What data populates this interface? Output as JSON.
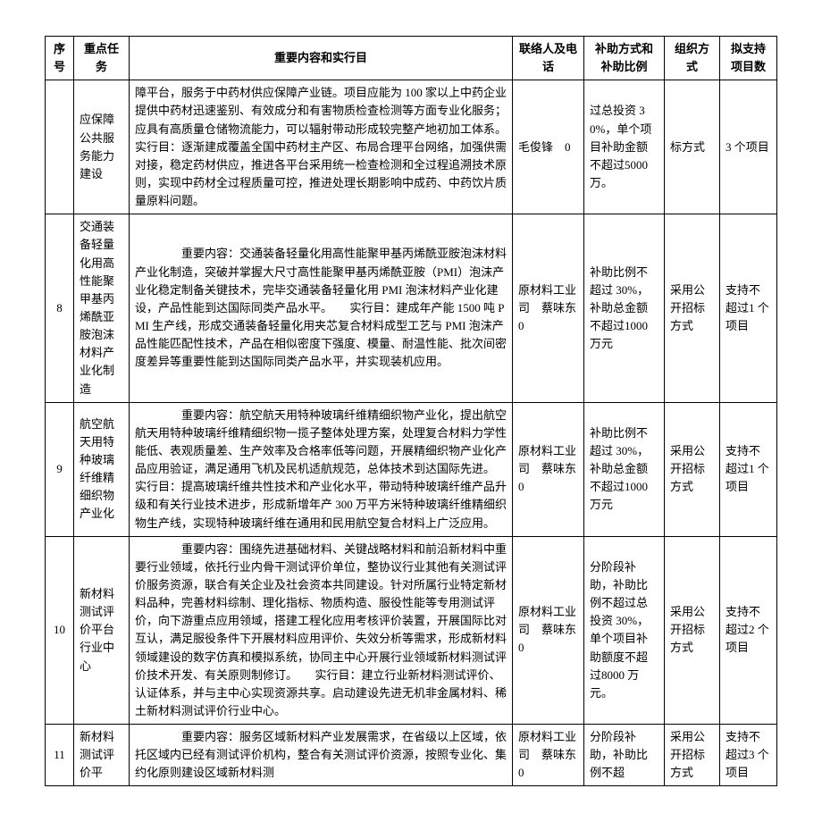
{
  "headers": {
    "seq": "序号",
    "task": "重点任务",
    "content": "重要内容和实行目",
    "contact": "联络人及电话",
    "subsidy": "补助方式和补助比例",
    "org": "组织方式",
    "projects": "拟支持项目数"
  },
  "rows": {
    "r0": {
      "task": "应保障公共服务能力建设",
      "content": "障平台，服务于中药材供应保障产业链。项目应能为 100 家以上中药企业提供中药材迅速鉴别、有效成分和有害物质检查检测等方面专业化服务；应具有高质量仓储物流能力，可以辐射带动形成较完整产地初加工体系。　　实行目：逐渐建成覆盖全国中药材主产区、布局合理平台网络，加强供需对接，稳定药材供应，推进各平台采用统一检查检测和全过程追溯技术原则，实现中药材全过程质量可控，推进处理长期影响中成药、中药饮片质量原料问题。",
      "contact": "毛俊锋　0",
      "subsidy": "过总投资 30%，单个项目补助金额不超过5000 万。",
      "org": "标方式",
      "projects": "3 个项目"
    },
    "r8": {
      "seq": "8",
      "task": "交通装备轻量化用高性能聚甲基丙烯酰亚胺泡沫材料产业化制造",
      "content": "　　重要内容：交通装备轻量化用高性能聚甲基丙烯酰亚胺泡沫材料产业化制造，突破并掌握大尺寸高性能聚甲基丙烯酰亚胺（PMI）泡沫产业化稳定制备关键技术，完毕交通装备轻量化用 PMI 泡沫材料产业化建设，产品性能到达国际同类产品水平。　　实行目：建成年产能 1500 吨 PMI 生产线，形成交通装备轻量化用夹芯复合材料成型工艺与 PMI 泡沫产品性能匹配性技术，产品在相似密度下强度、模量、耐温性能、批次间密度差异等重要性能到达国际同类产品水平，并实现装机应用。",
      "contact": "原材料工业司　蔡味东　0",
      "subsidy": "补助比例不超过 30%，补助总金额不超过1000 万元",
      "org": "采用公开招标方式",
      "projects": "支持不超过1 个项目"
    },
    "r9": {
      "seq": "9",
      "task": "航空航天用特种玻璃纤维精细织物产业化",
      "content": "　　重要内容：航空航天用特种玻璃纤维精细织物产业化，提出航空航天用特种玻璃纤维精细织物一揽子整体处理方案，处理复合材料力学性能低、表观质量差、生产效率及合格率低等问题，开展精细织物产业化产品应用验证，满足通用飞机及民机适航规范，总体技术到达国际先进。　　实行目：提高玻璃纤维共性技术和产业化水平，带动特种玻璃纤维产品升级和有关行业技术进步，形成新增年产 300 万平方米特种玻璃纤维精细织物生产线，实现特种玻璃纤维在通用和民用航空复合材料上广泛应用。",
      "contact": "原材料工业司　蔡味东　0",
      "subsidy": "补助比例不超过 30%，补助总金额不超过1000 万元",
      "org": "采用公开招标方式",
      "projects": "支持不超过1 个项目"
    },
    "r10": {
      "seq": "10",
      "task": "新材料测试评价平台行业中心",
      "content": "　　重要内容：围绕先进基础材料、关键战略材料和前沿新材料中重要行业领域，依托行业内骨干测试评价单位，整协议行业其他有关测试评价服务资源，联合有关企业及社会资本共同建设。针对所属行业特定新材料品种，完善材料综制、理化指标、物质构造、服役性能等专用测试评价，向下游重点应用领域，搭建工程化应用考核评价装置，开展国际比对互认，满足服役条件下开展材料应用评价、失效分析等需求，形成新材料领域建设的数字仿真和模拟系统，协同主中心开展行业领域新材料测试评价技术开发、有关原则制修订。　　实行目：建立行业新材料测试评价、认证体系，并与主中心实现资源共享。启动建设先进无机非金属材料、稀土新材料测试评价行业中心。",
      "contact": "原材料工业司　蔡味东　0",
      "subsidy": "分阶段补助，补助比例不超过总投资 30%，单个项目补助额度不超过8000 万元。",
      "org": "采用公开招标方式",
      "projects": "支持不超过2 个项目"
    },
    "r11": {
      "seq": "11",
      "task": "新材料测试评价平",
      "content": "　　重要内容：服务区域新材料产业发展需求，在省级以上区域，依托区域内已经有测试评价机构，整合有关测试评价资源，按照专业化、集约化原则建设区域新材料测",
      "contact": "原材料工业司　蔡味东　0",
      "subsidy": "分阶段补助，补助比例不超",
      "org": "采用公开招标方式",
      "projects": "支持不超过3 个项目"
    }
  }
}
